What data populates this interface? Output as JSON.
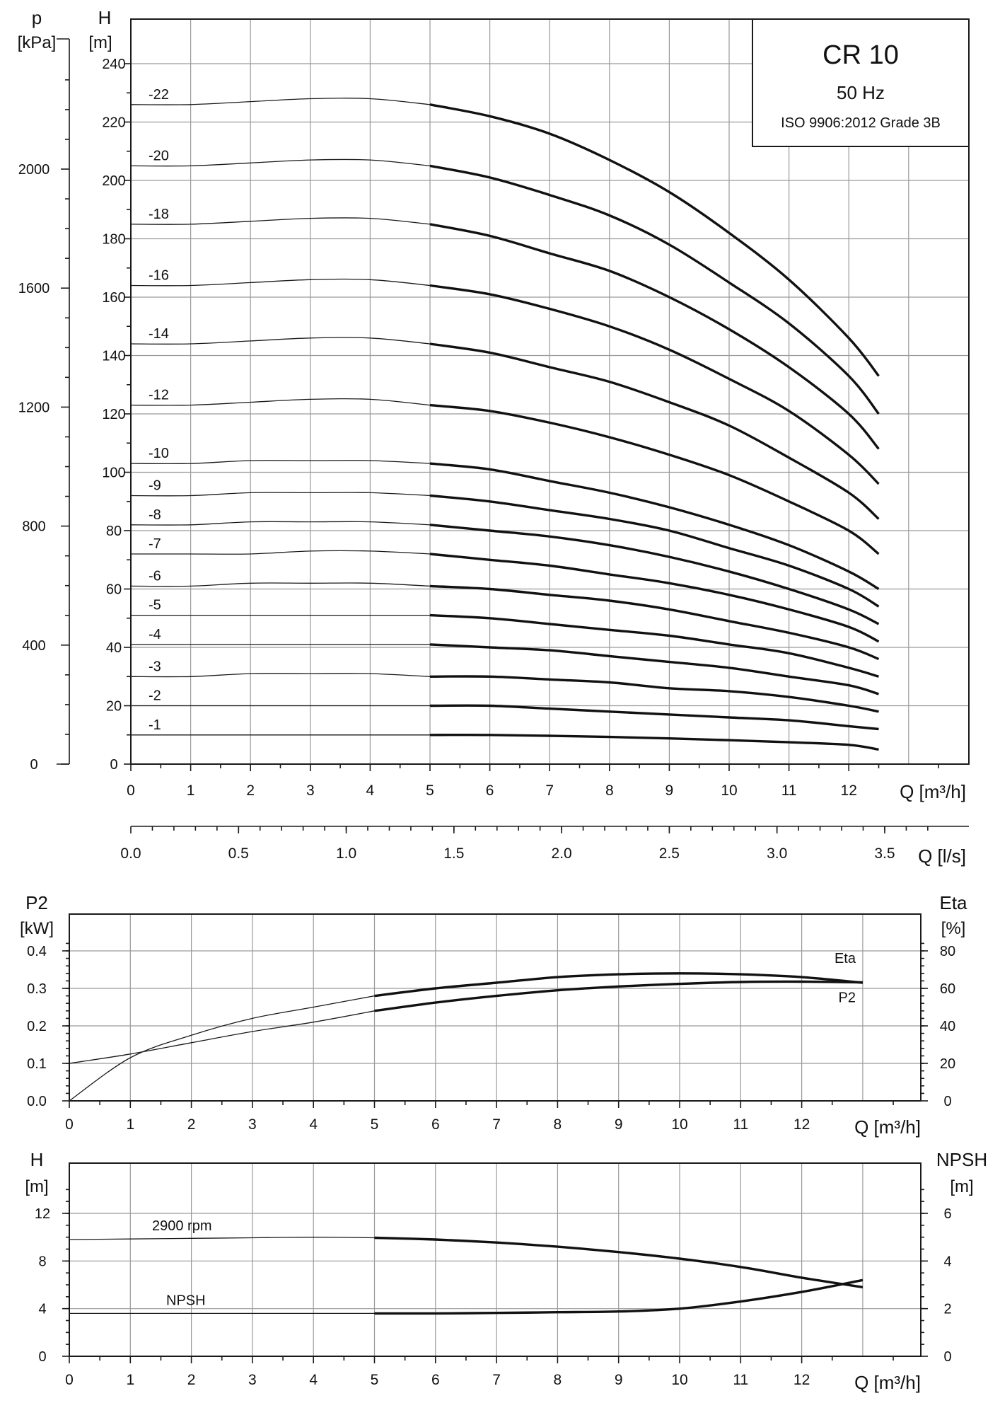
{
  "title_box": {
    "title": "CR 10",
    "frequency": "50 Hz",
    "standard": "ISO 9906:2012 Grade 3B"
  },
  "chart_data": [
    {
      "type": "line",
      "xlabel": "Q [m³/h]",
      "ylabel": "H [m]",
      "secondary_left_axis": {
        "label_top": "p",
        "label_unit": "[kPa]",
        "ticks": [
          0,
          400,
          800,
          1200,
          1600,
          2000
        ]
      },
      "secondary_x_axis": {
        "label": "Q [l/s]",
        "ticks": [
          "0.0",
          "0.5",
          "1.0",
          "1.5",
          "2.0",
          "2.5",
          "3.0",
          "3.5"
        ]
      },
      "xlim": [
        0,
        14
      ],
      "ylim": [
        0,
        260
      ],
      "x_ticks": [
        0,
        1,
        2,
        3,
        4,
        5,
        6,
        7,
        8,
        9,
        10,
        11,
        12
      ],
      "y_ticks": [
        0,
        20,
        40,
        60,
        80,
        100,
        120,
        140,
        160,
        180,
        200,
        220,
        240
      ],
      "y_label_text": "H",
      "y_unit_text": "[m]",
      "x_axis_unit": "Q [m³/h]",
      "grid": true,
      "x": [
        0,
        1,
        2,
        3,
        4,
        5,
        6,
        7,
        8,
        9,
        10,
        11,
        12,
        12.5
      ],
      "series": [
        {
          "name": "-22",
          "values": [
            226,
            226,
            227,
            228,
            228,
            226,
            222,
            216,
            207,
            196,
            182,
            166,
            146,
            133
          ]
        },
        {
          "name": "-20",
          "values": [
            205,
            205,
            206,
            207,
            207,
            205,
            201,
            195,
            188,
            178,
            165,
            151,
            133,
            120
          ]
        },
        {
          "name": "-18",
          "values": [
            185,
            185,
            186,
            187,
            187,
            185,
            181,
            175,
            169,
            160,
            149,
            136,
            120,
            108
          ]
        },
        {
          "name": "-16",
          "values": [
            164,
            164,
            165,
            166,
            166,
            164,
            161,
            156,
            150,
            142,
            132,
            121,
            106,
            96
          ]
        },
        {
          "name": "-14",
          "values": [
            144,
            144,
            145,
            146,
            146,
            144,
            141,
            136,
            131,
            124,
            116,
            105,
            93,
            84
          ]
        },
        {
          "name": "-12",
          "values": [
            123,
            123,
            124,
            125,
            125,
            123,
            121,
            117,
            112,
            106,
            99,
            90,
            80,
            72
          ]
        },
        {
          "name": "-10",
          "values": [
            103,
            103,
            104,
            104,
            104,
            103,
            101,
            97,
            93,
            88,
            82,
            75,
            66,
            60
          ]
        },
        {
          "name": "-9",
          "values": [
            92,
            92,
            93,
            93,
            93,
            92,
            90,
            87,
            84,
            80,
            74,
            68,
            60,
            54
          ]
        },
        {
          "name": "-8",
          "values": [
            82,
            82,
            83,
            83,
            83,
            82,
            80,
            78,
            75,
            71,
            66,
            60,
            53,
            48
          ]
        },
        {
          "name": "-7",
          "values": [
            72,
            72,
            72,
            73,
            73,
            72,
            70,
            68,
            65,
            62,
            58,
            53,
            47,
            42
          ]
        },
        {
          "name": "-6",
          "values": [
            61,
            61,
            62,
            62,
            62,
            61,
            60,
            58,
            56,
            53,
            49,
            45,
            40,
            36
          ]
        },
        {
          "name": "-5",
          "values": [
            51,
            51,
            51,
            51,
            51,
            51,
            50,
            48,
            46,
            44,
            41,
            38,
            33,
            30
          ]
        },
        {
          "name": "-4",
          "values": [
            41,
            41,
            41,
            41,
            41,
            41,
            40,
            39,
            37,
            35,
            33,
            30,
            27,
            24
          ]
        },
        {
          "name": "-3",
          "values": [
            30,
            30,
            31,
            31,
            31,
            30,
            30,
            29,
            28,
            26,
            25,
            23,
            20,
            18
          ]
        },
        {
          "name": "-2",
          "values": [
            20,
            20,
            20,
            20,
            20,
            20,
            20,
            19,
            18,
            17,
            16,
            15,
            13,
            12
          ]
        },
        {
          "name": "-1",
          "values": [
            10,
            10,
            10,
            10,
            10,
            10,
            10,
            9.7,
            9.3,
            8.8,
            8.2,
            7.5,
            6.6,
            5
          ]
        }
      ]
    },
    {
      "type": "line",
      "xlabel": "Q [m³/h]",
      "ylabel": "P2 [kW]",
      "y2label": "Eta [%]",
      "y_label_text": "P2",
      "y_unit_text": "[kW]",
      "y2_label_text": "Eta",
      "y2_unit_text": "[%]",
      "x_axis_unit": "Q [m³/h]",
      "xlim": [
        0,
        14
      ],
      "ylim": [
        0,
        0.45
      ],
      "y2lim": [
        0,
        90
      ],
      "x_ticks": [
        0,
        1,
        2,
        3,
        4,
        5,
        6,
        7,
        8,
        9,
        10,
        11,
        12
      ],
      "y_ticks": [
        "0.0",
        "0.1",
        "0.2",
        "0.3",
        "0.4"
      ],
      "y2_ticks": [
        0,
        20,
        40,
        60,
        80
      ],
      "grid": true,
      "x": [
        0,
        1,
        2,
        3,
        4,
        5,
        6,
        7,
        8,
        9,
        10,
        11,
        12,
        13
      ],
      "series": [
        {
          "name": "Eta",
          "axis": "right",
          "values": [
            0,
            23,
            35,
            44,
            50,
            56,
            60,
            63,
            66,
            67.5,
            68,
            67.5,
            66,
            63
          ]
        },
        {
          "name": "P2",
          "axis": "left",
          "values": [
            0.1,
            0.125,
            0.155,
            0.185,
            0.21,
            0.24,
            0.262,
            0.28,
            0.295,
            0.305,
            0.312,
            0.317,
            0.318,
            0.316
          ]
        }
      ]
    },
    {
      "type": "line",
      "xlabel": "Q [m³/h]",
      "ylabel": "H [m]",
      "y2label": "NPSH [m]",
      "y_label_text": "H",
      "y_unit_text": "[m]",
      "y2_label_text": "NPSH",
      "y2_unit_text": "[m]",
      "x_axis_unit": "Q [m³/h]",
      "xlim": [
        0,
        14
      ],
      "ylim": [
        0,
        15
      ],
      "y2lim": [
        0,
        7.5
      ],
      "x_ticks": [
        0,
        1,
        2,
        3,
        4,
        5,
        6,
        7,
        8,
        9,
        10,
        11,
        12
      ],
      "y_ticks": [
        0,
        4,
        8,
        12
      ],
      "y2_ticks": [
        0,
        2,
        4,
        6
      ],
      "grid": true,
      "x": [
        0,
        1,
        2,
        3,
        4,
        5,
        6,
        7,
        8,
        9,
        10,
        11,
        12,
        13
      ],
      "series": [
        {
          "name": "2900 rpm",
          "axis": "left",
          "values": [
            9.8,
            9.85,
            9.9,
            9.95,
            10.0,
            9.95,
            9.8,
            9.55,
            9.2,
            8.75,
            8.2,
            7.5,
            6.6,
            5.8
          ]
        },
        {
          "name": "NPSH",
          "axis": "right",
          "values": [
            1.8,
            1.8,
            1.8,
            1.8,
            1.8,
            1.8,
            1.8,
            1.82,
            1.85,
            1.88,
            2.0,
            2.3,
            2.7,
            3.2
          ]
        }
      ]
    }
  ]
}
